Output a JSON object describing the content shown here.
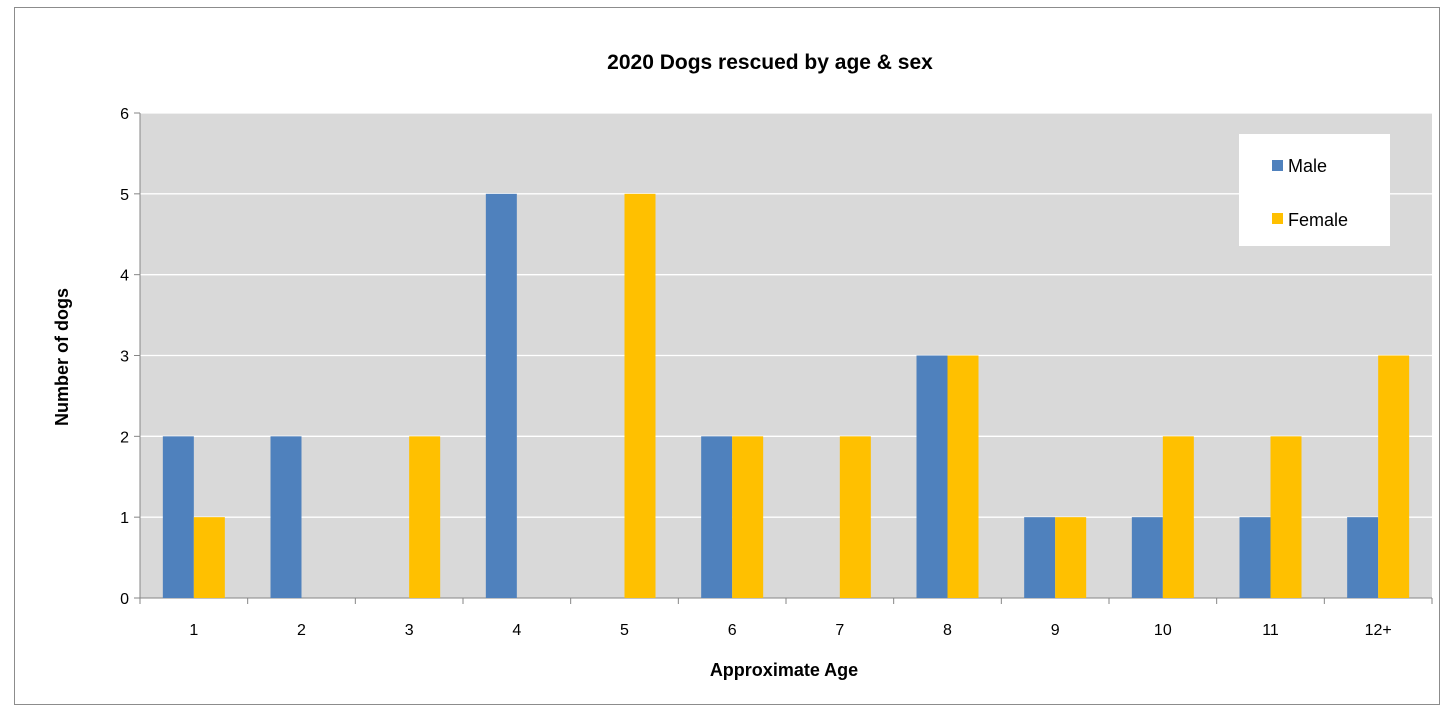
{
  "chart_data": {
    "type": "bar",
    "title": "2020 Dogs rescued by age & sex",
    "xlabel": "Approximate Age",
    "ylabel": "Number of dogs",
    "categories": [
      "1",
      "2",
      "3",
      "4",
      "5",
      "6",
      "7",
      "8",
      "9",
      "10",
      "11",
      "12+"
    ],
    "series": [
      {
        "name": "Male",
        "color": "#4f81bd",
        "values": [
          2,
          2,
          0,
          5,
          0,
          2,
          0,
          3,
          1,
          1,
          1,
          1
        ]
      },
      {
        "name": "Female",
        "color": "#ffc000",
        "values": [
          1,
          0,
          2,
          0,
          5,
          2,
          2,
          3,
          1,
          2,
          2,
          3
        ]
      }
    ],
    "ylim": [
      0,
      6
    ],
    "yticks": [
      0,
      1,
      2,
      3,
      4,
      5,
      6
    ],
    "grid": true,
    "plot_background": "#d9d9d9",
    "legend_position": "top-right"
  }
}
